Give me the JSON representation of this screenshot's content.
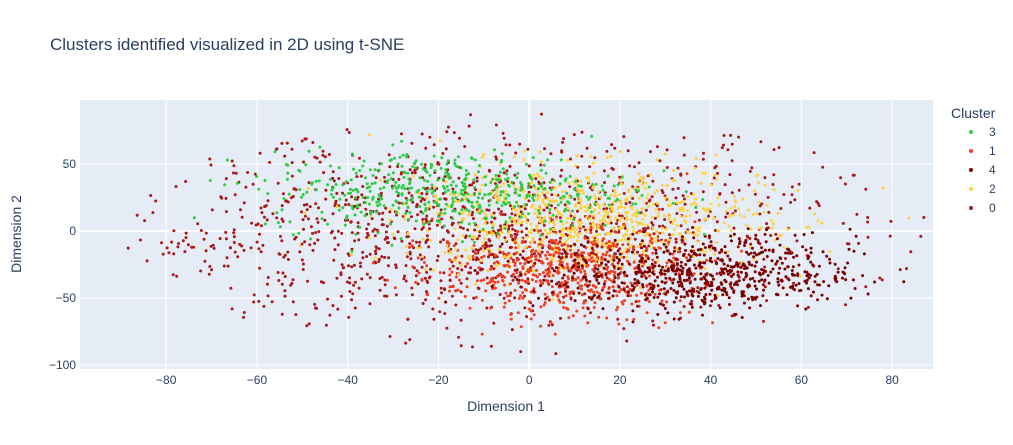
{
  "chart_data": {
    "type": "scatter",
    "title": "Clusters identified visualized in 2D using t-SNE",
    "xlabel": "Dimension 1",
    "ylabel": "Dimension 2",
    "xlim": [
      -99,
      89
    ],
    "ylim": [
      -103,
      98
    ],
    "xticks": [
      -80,
      -60,
      -40,
      -20,
      0,
      20,
      40,
      60,
      80
    ],
    "yticks": [
      -100,
      -50,
      0,
      50
    ],
    "grid": true,
    "legend": {
      "title": "Cluster",
      "placement": "right",
      "entries": [
        "3",
        "1",
        "4",
        "2",
        "0"
      ]
    },
    "series": [
      {
        "name": "3",
        "color": "#2ecc40",
        "center": [
          -18,
          30
        ],
        "spread": [
          20,
          15
        ],
        "count": 480
      },
      {
        "name": "1",
        "color": "#f0401f",
        "center": [
          8,
          -30
        ],
        "spread": [
          14,
          17
        ],
        "count": 560
      },
      {
        "name": "4",
        "color": "#7a0000",
        "center": [
          38,
          -32
        ],
        "spread": [
          17,
          14
        ],
        "count": 640
      },
      {
        "name": "2",
        "color": "#ffd23f",
        "center": [
          12,
          8
        ],
        "spread": [
          20,
          20
        ],
        "count": 820
      },
      {
        "name": "0",
        "color": "#a81818",
        "center": [
          -10,
          0
        ],
        "spread": [
          40,
          35
        ],
        "count": 1300
      }
    ]
  }
}
